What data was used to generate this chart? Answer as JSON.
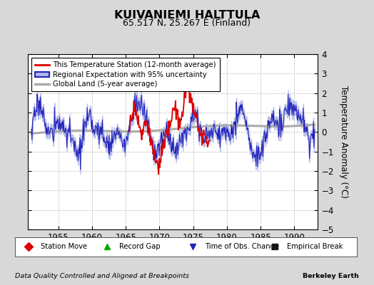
{
  "title": "KUIVANIEMI HALTTULA",
  "subtitle": "65.517 N, 25.267 E (Finland)",
  "ylabel": "Temperature Anomaly (°C)",
  "ylim": [
    -5,
    4
  ],
  "xlim": [
    1950.5,
    1993.5
  ],
  "yticks": [
    -5,
    -4,
    -3,
    -2,
    -1,
    0,
    1,
    2,
    3,
    4
  ],
  "xticks": [
    1955,
    1960,
    1965,
    1970,
    1975,
    1980,
    1985,
    1990
  ],
  "bg_color": "#d8d8d8",
  "plot_bg_color": "#ffffff",
  "grid_color": "#bbbbbb",
  "station_color": "#dd0000",
  "regional_color": "#2222bb",
  "regional_fill_color": "#b0b8e8",
  "global_color": "#aaaaaa",
  "footer_left": "Data Quality Controlled and Aligned at Breakpoints",
  "footer_right": "Berkeley Earth",
  "legend1_entries": [
    "This Temperature Station (12-month average)",
    "Regional Expectation with 95% uncertainty",
    "Global Land (5-year average)"
  ],
  "legend2_entries": [
    "Station Move",
    "Record Gap",
    "Time of Obs. Change",
    "Empirical Break"
  ]
}
